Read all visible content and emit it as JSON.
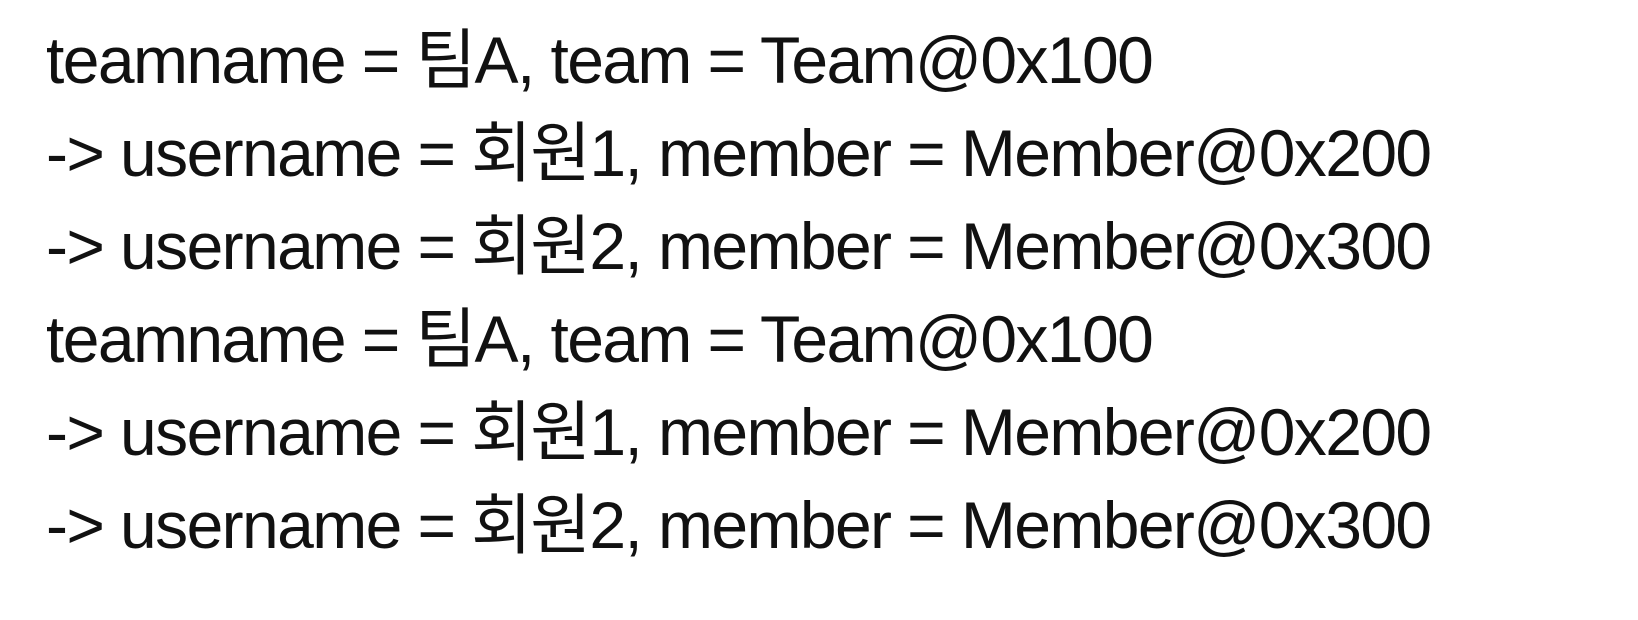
{
  "lines": [
    "teamname = 팀A, team = Team@0x100",
    "-> username = 회원1, member = Member@0x200",
    "-> username = 회원2, member = Member@0x300",
    "teamname = 팀A, team = Team@0x100",
    "-> username = 회원1, member = Member@0x200",
    "-> username = 회원2, member = Member@0x300"
  ]
}
